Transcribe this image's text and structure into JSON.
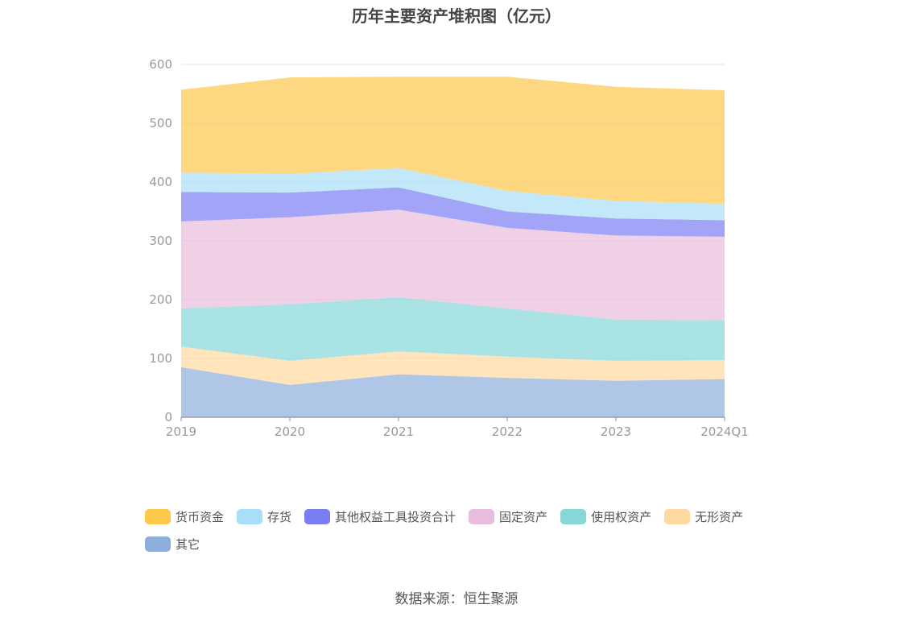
{
  "chart_data": {
    "type": "area",
    "stacked": true,
    "title": "历年主要资产堆积图（亿元）",
    "categories": [
      "2019",
      "2020",
      "2021",
      "2022",
      "2023",
      "2024Q1"
    ],
    "ylim": [
      0,
      600
    ],
    "yticks": [
      0,
      100,
      200,
      300,
      400,
      500,
      600
    ],
    "grid": true,
    "legend_position": "bottom",
    "series": [
      {
        "name": "其它",
        "color": "#8eaedc",
        "values": [
          85,
          55,
          73,
          67,
          62,
          65
        ]
      },
      {
        "name": "无形资产",
        "color": "#ffd9a0",
        "values": [
          35,
          41,
          39,
          36,
          34,
          32
        ]
      },
      {
        "name": "使用权资产",
        "color": "#86d7d8",
        "values": [
          65,
          96,
          92,
          82,
          70,
          68
        ]
      },
      {
        "name": "固定资产",
        "color": "#e8bcdc",
        "values": [
          148,
          148,
          149,
          137,
          143,
          142
        ]
      },
      {
        "name": "其他权益工具投资合计",
        "color": "#7b7df3",
        "values": [
          50,
          42,
          38,
          28,
          29,
          28
        ]
      },
      {
        "name": "存货",
        "color": "#a8def7",
        "values": [
          33,
          32,
          33,
          35,
          30,
          28
        ]
      },
      {
        "name": "货币资金",
        "color": "#fec84a",
        "values": [
          141,
          164,
          155,
          194,
          194,
          193
        ]
      }
    ],
    "source": "数据来源：恒生聚源"
  }
}
